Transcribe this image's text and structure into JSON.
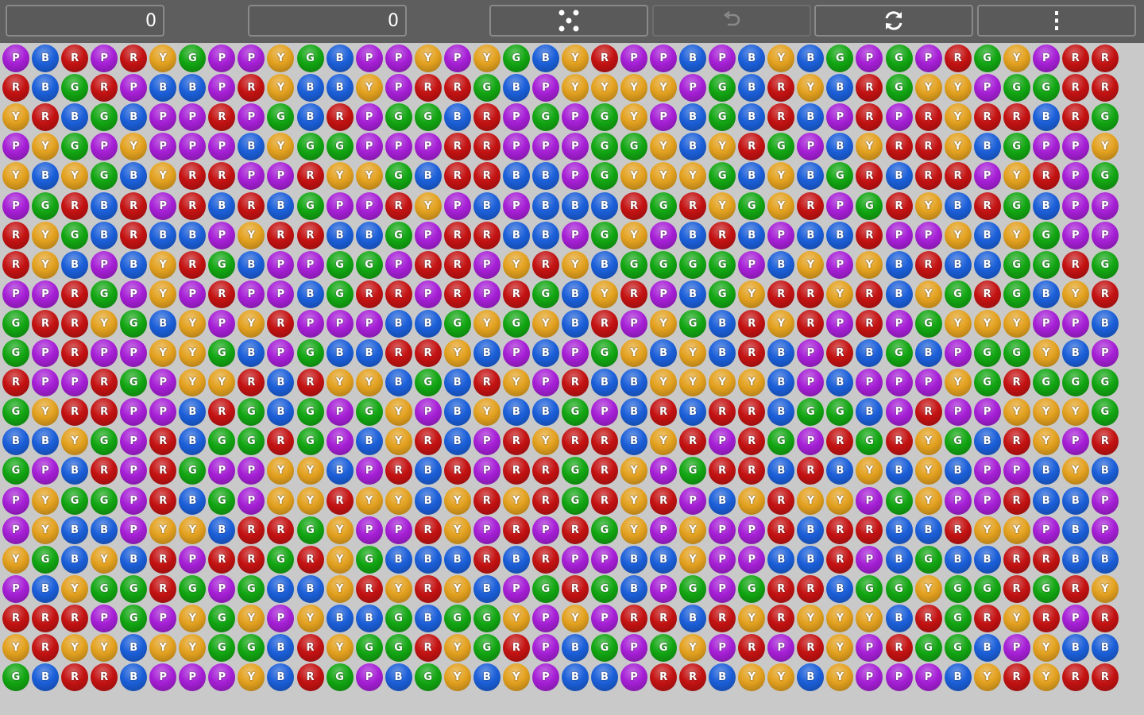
{
  "toolbar": {
    "score": "0",
    "selection_score": "0",
    "new_game_icon": "dice-five-icon",
    "undo_icon": "undo-icon",
    "undo_enabled": false,
    "restart_icon": "refresh-icon",
    "menu_icon": "more-vertical-icon"
  },
  "colors": {
    "P": "#a61fd6",
    "B": "#1b5fd9",
    "R": "#c41212",
    "G": "#12a612",
    "Y": "#e3a11f"
  },
  "board": {
    "rows": [
      "PBRPRYGPPYGBPPYPYGBYRPPBPBYBGPGPRGYPRR",
      "RBGRPBBPRYBBYPRRGBPYYYYPGBRYBRGYYPGGRR",
      "YRBGBPPRPGBRPGGBRPGPGYPBGBRBPRPRYRRBRG",
      "PYGPYPPPBYGGPPPRRPPPGGYBYRGPBYRRYBGPPY",
      "YBYGBYRRPPRYYGBRRBBPGYYYGBYBGRBRRPYRPG",
      "PGRBRPRBRBGPPRYPBPBBBRGRYGYRPGRYBRGBPP",
      "RYGBRBBPYRRBBGPRRBBPGYPBRBPBBRPPYBYGPP",
      "RYBPBYRGBPPGGPRRPYRYBGGGGPBYPYBRBBGGRG",
      "PPRGPYPRPPBGRRPRPRGBYRPBGYRRYRBYGRGBYR",
      "GRRYGBYPYRPPPBBGYGYBRPYGBRYRPRPGYYYPPB",
      "GPRPPYYGBPGBBRRYBPBPGYBYBRBPRBGBPGGYBP",
      "RPPRGPYYRBRYYBGBRYPRBBYYYYBPBPPPYGRGGG",
      "GYRRPPBRGBGPGYPBYBBGPBRBRRBGGBPRPPYYYG",
      "BBYGPRBGGRGPBYRBPRYRRBYRPRGPRGRYGBRYPR",
      "GPBRPRGPPYYBPRBRPRRGRYPGRRBRBYBYBPPBYB",
      "PYGGPRBGPYYRYYBYRYRGRYRPBYRYYPGYPPRBBP",
      "PYBBPYYBRRGYPPRYPRPRGYPYPPRBRRBBRYYPBP",
      "YGBYBRPRRGRYGBBBRBRPPBBYPPBBRPBGBBRRBB",
      "PBYGGRGPGBBYRYRYBPGRGBPGPGRRBGGYGGRGRY",
      "RRRPGPYGYPYBBGBGGYPYPRRBRYRYYYBRGRYRPR",
      "YRYYBYYGGBRYGGRYGRPBGPGYPRPRYPRGGBPYBB",
      "GBRRBPPPYBRGPBGYBYPBBPRRBYYBYPPPBYRYRR"
    ]
  }
}
